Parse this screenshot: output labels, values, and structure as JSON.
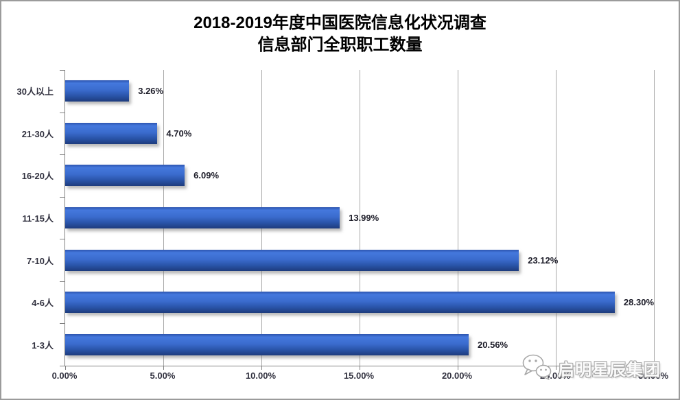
{
  "title": {
    "line1": "2018-2019年度中国医院信息化状况调查",
    "line2": "信息部门全职职工数量"
  },
  "chart_data": {
    "type": "bar",
    "orientation": "horizontal",
    "title": "2018-2019年度中国医院信息化状况调查 信息部门全职职工数量",
    "categories": [
      "30人以上",
      "21-30人",
      "16-20人",
      "11-15人",
      "7-10人",
      "4-6人",
      "1-3人"
    ],
    "values": [
      3.26,
      4.7,
      6.09,
      13.99,
      23.12,
      28.3,
      20.56
    ],
    "value_labels": [
      "3.26%",
      "4.70%",
      "6.09%",
      "13.99%",
      "23.12%",
      "28.30%",
      "20.56%"
    ],
    "x_ticks": [
      "0.00%",
      "5.00%",
      "10.00%",
      "15.00%",
      "20.00%",
      "25.00%",
      "30.00%"
    ],
    "xlim": [
      0,
      30
    ],
    "xlabel": "",
    "ylabel": "",
    "grid": true,
    "legend": false,
    "bar_color": "#3b6cce",
    "bar_gradient_top": "#4478dd",
    "bar_gradient_bottom": "#1e3c7d",
    "grid_color": "#a6a6a6",
    "axis_color": "#808080",
    "label_color": "#31313f"
  },
  "watermark": {
    "text": "启明星辰集团",
    "icon": "wechat-icon"
  }
}
